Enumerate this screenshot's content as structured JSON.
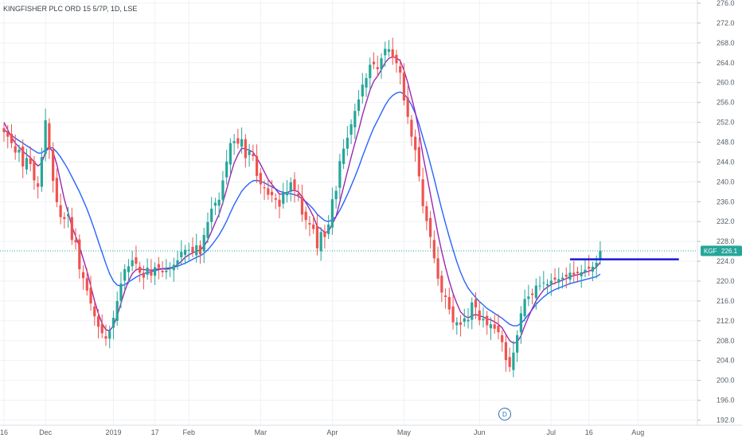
{
  "chart_data": {
    "type": "candlestick",
    "title": "KINGFISHER PLC ORD 15 5/7P, 1D, LSE",
    "symbol": "KGF",
    "last_price": "226.1",
    "y_ticks": [
      192.0,
      196.0,
      200.0,
      204.0,
      208.0,
      212.0,
      216.0,
      220.0,
      224.0,
      228.0,
      232.0,
      236.0,
      240.0,
      244.0,
      248.0,
      252.0,
      256.0,
      260.0,
      264.0,
      268.0,
      272.0,
      276.0
    ],
    "x_labels": [
      {
        "label": "16",
        "index": 0
      },
      {
        "label": "Dec",
        "index": 11
      },
      {
        "label": "2019",
        "index": 29
      },
      {
        "label": "17",
        "index": 40
      },
      {
        "label": "Feb",
        "index": 49
      },
      {
        "label": "Mar",
        "index": 68
      },
      {
        "label": "Apr",
        "index": 87
      },
      {
        "label": "May",
        "index": 106
      },
      {
        "label": "Jun",
        "index": 126
      },
      {
        "label": "Jul",
        "index": 145
      },
      {
        "label": "16",
        "index": 155
      },
      {
        "label": "Aug",
        "index": 168
      }
    ],
    "ylim": [
      191,
      277
    ],
    "grid": true,
    "colors": {
      "up": "#26a69a",
      "down": "#ef5350",
      "fast_ma": "#9c27b0",
      "slow_ma": "#2962ff",
      "resistance": "#1a1adc",
      "price_line": "#26a69a"
    },
    "resistance_level": 224.4,
    "resistance_range": [
      150,
      178
    ],
    "close": [
      250.0,
      249.1,
      247.8,
      245.9,
      246.5,
      243.1,
      244.8,
      243.6,
      240.3,
      239.0,
      245.0,
      252.4,
      246.5,
      240.2,
      235.9,
      232.9,
      232.5,
      233.5,
      228.3,
      227.8,
      222.4,
      220.6,
      218.1,
      215.5,
      212.9,
      210.8,
      209.5,
      208.4,
      210.0,
      212.6,
      216.0,
      219.5,
      222.4,
      223.0,
      224.2,
      223.5,
      221.7,
      220.7,
      222.7,
      221.1,
      222.8,
      222.7,
      221.8,
      222.1,
      222.8,
      223.3,
      224.2,
      225.9,
      226.3,
      226.3,
      225.8,
      227.2,
      225.4,
      229.3,
      231.9,
      234.6,
      235.8,
      236.4,
      240.3,
      244.1,
      247.8,
      248.2,
      247.7,
      248.6,
      244.8,
      246.2,
      245.2,
      241.2,
      239.5,
      238.7,
      237.4,
      237.3,
      236.4,
      235.0,
      237.9,
      238.0,
      239.9,
      238.2,
      237.1,
      233.4,
      232.3,
      231.4,
      230.5,
      226.6,
      229.9,
      228.9,
      231.4,
      236.5,
      238.2,
      244.2,
      246.7,
      248.9,
      251.6,
      254.3,
      256.6,
      259.6,
      260.9,
      263.6,
      263.7,
      262.7,
      264.9,
      266.8,
      266.7,
      265.0,
      263.9,
      262.0,
      256.4,
      253.1,
      249.1,
      246.4,
      241.1,
      235.1,
      232.1,
      228.9,
      224.6,
      220.5,
      217.7,
      216.8,
      214.3,
      211.7,
      211.7,
      211.2,
      212.5,
      212.2,
      215.7,
      214.7,
      212.1,
      212.4,
      211.1,
      211.3,
      210.4,
      209.7,
      207.7,
      204.1,
      202.7,
      205.6,
      209.1,
      213.5,
      216.4,
      216.9,
      217.2,
      219.1,
      219.1,
      219.7,
      219.4,
      220.1,
      220.3,
      220.4,
      220.7,
      220.9,
      221.7,
      221.3,
      221.6,
      221.8,
      222.3,
      222.5,
      222.9,
      223.7,
      226.1
    ],
    "fast_ma": [
      252.0,
      250.5,
      249.0,
      247.8,
      247.0,
      246.2,
      245.5,
      244.9,
      244.0,
      243.2,
      243.8,
      246.0,
      247.0,
      246.0,
      243.5,
      240.0,
      236.5,
      233.8,
      231.0,
      229.0,
      227.0,
      224.5,
      222.0,
      219.0,
      216.0,
      213.5,
      211.5,
      210.2,
      210.0,
      211.0,
      213.0,
      215.5,
      218.0,
      220.0,
      221.5,
      222.3,
      222.5,
      222.3,
      222.3,
      222.2,
      222.3,
      222.5,
      222.5,
      222.4,
      222.5,
      222.8,
      223.3,
      224.0,
      224.8,
      225.3,
      225.7,
      226.0,
      226.3,
      227.0,
      228.3,
      230.0,
      231.8,
      233.5,
      235.8,
      238.5,
      241.3,
      243.8,
      245.5,
      246.8,
      246.6,
      246.4,
      246.0,
      244.8,
      243.5,
      242.0,
      240.5,
      239.5,
      238.5,
      237.5,
      237.6,
      237.8,
      238.2,
      238.3,
      238.0,
      237.0,
      235.8,
      234.5,
      233.0,
      231.0,
      230.5,
      229.8,
      230.0,
      231.5,
      233.0,
      236.0,
      239.0,
      242.0,
      245.0,
      247.8,
      250.5,
      253.5,
      256.0,
      258.5,
      260.3,
      261.3,
      262.6,
      264.0,
      264.9,
      265.2,
      265.0,
      264.4,
      262.5,
      260.0,
      257.0,
      254.0,
      250.0,
      245.5,
      241.5,
      237.5,
      233.5,
      229.5,
      226.0,
      222.8,
      220.0,
      217.5,
      215.5,
      213.8,
      213.0,
      212.6,
      213.0,
      213.3,
      213.0,
      212.8,
      212.4,
      212.2,
      211.8,
      211.3,
      210.6,
      209.3,
      208.0,
      207.5,
      207.7,
      209.0,
      211.0,
      212.8,
      214.5,
      216.0,
      217.2,
      218.2,
      218.8,
      219.3,
      219.6,
      219.9,
      220.2,
      220.5,
      220.9,
      221.1,
      221.3,
      221.5,
      221.8,
      222.0,
      222.3,
      222.8,
      223.8
    ],
    "slow_ma": [
      250.5,
      250.0,
      249.4,
      248.8,
      248.3,
      247.8,
      247.3,
      246.8,
      246.3,
      245.8,
      245.8,
      246.5,
      247.0,
      246.8,
      246.0,
      245.0,
      243.8,
      242.5,
      241.0,
      239.5,
      238.0,
      236.3,
      234.5,
      232.5,
      230.3,
      228.0,
      225.8,
      223.5,
      221.5,
      220.0,
      219.2,
      219.0,
      219.3,
      219.8,
      220.3,
      220.8,
      221.2,
      221.5,
      221.7,
      221.9,
      222.1,
      222.3,
      222.5,
      222.6,
      222.7,
      222.8,
      223.0,
      223.3,
      223.6,
      224.0,
      224.4,
      224.8,
      225.1,
      225.6,
      226.3,
      227.2,
      228.2,
      229.3,
      230.6,
      232.1,
      233.8,
      235.4,
      236.8,
      238.1,
      239.0,
      239.7,
      240.2,
      240.3,
      240.1,
      239.8,
      239.4,
      239.0,
      238.6,
      238.1,
      237.9,
      237.7,
      237.6,
      237.4,
      237.1,
      236.6,
      236.0,
      235.3,
      234.5,
      233.5,
      232.8,
      232.2,
      232.0,
      232.4,
      233.0,
      234.3,
      235.8,
      237.4,
      239.2,
      241.0,
      243.0,
      245.1,
      247.1,
      249.1,
      250.9,
      252.4,
      253.9,
      255.4,
      256.6,
      257.4,
      257.9,
      258.1,
      257.7,
      256.8,
      255.5,
      253.8,
      251.6,
      249.0,
      246.4,
      243.6,
      240.6,
      237.5,
      234.5,
      231.6,
      228.9,
      226.3,
      223.9,
      221.8,
      220.0,
      218.6,
      217.6,
      216.7,
      215.9,
      215.2,
      214.5,
      214.0,
      213.5,
      213.0,
      212.5,
      211.9,
      211.3,
      211.0,
      211.0,
      211.5,
      212.3,
      213.3,
      214.3,
      215.3,
      216.1,
      216.8,
      217.4,
      217.9,
      218.3,
      218.6,
      218.9,
      219.2,
      219.5,
      219.7,
      219.9,
      220.1,
      220.3,
      220.5,
      220.7,
      220.9,
      221.4
    ]
  }
}
